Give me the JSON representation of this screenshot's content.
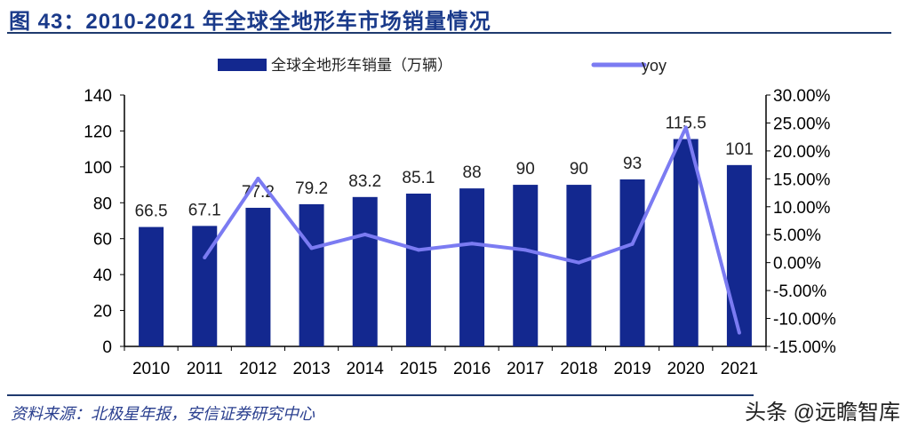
{
  "title": "图 43：2010-2021 年全球全地形车市场销量情况",
  "source": "资料来源：北极星年报，安信证券研究中心",
  "watermark": "头条 @远瞻智库",
  "chart_data": {
    "type": "bar+line",
    "categories": [
      "2010",
      "2011",
      "2012",
      "2013",
      "2014",
      "2015",
      "2016",
      "2017",
      "2018",
      "2019",
      "2020",
      "2021"
    ],
    "series": [
      {
        "name": "全球全地形车销量（万辆）",
        "type": "bar",
        "axis": "left",
        "color": "#13288f",
        "values": [
          66.5,
          67.1,
          77.2,
          79.2,
          83.2,
          85.1,
          88,
          90,
          90,
          93,
          115.5,
          101
        ],
        "labels": [
          "66.5",
          "67.1",
          "77.2",
          "79.2",
          "83.2",
          "85.1",
          "88",
          "90",
          "90",
          "93",
          "115.5",
          "101"
        ]
      },
      {
        "name": "yoy",
        "type": "line",
        "axis": "right",
        "color": "#7b7bf2",
        "values": [
          null,
          0.9,
          15.05,
          2.59,
          5.05,
          2.28,
          3.41,
          2.27,
          0.0,
          3.33,
          24.19,
          -12.55
        ]
      }
    ],
    "y_left": {
      "range": [
        0,
        140
      ],
      "ticks": [
        "0",
        "20",
        "40",
        "60",
        "80",
        "100",
        "120",
        "140"
      ]
    },
    "y_right": {
      "range": [
        -15,
        30
      ],
      "ticks": [
        "-15.00%",
        "-10.00%",
        "-5.00%",
        "0.00%",
        "5.00%",
        "10.00%",
        "15.00%",
        "20.00%",
        "25.00%",
        "30.00%"
      ]
    },
    "legend_placement": "top",
    "grid": false
  }
}
